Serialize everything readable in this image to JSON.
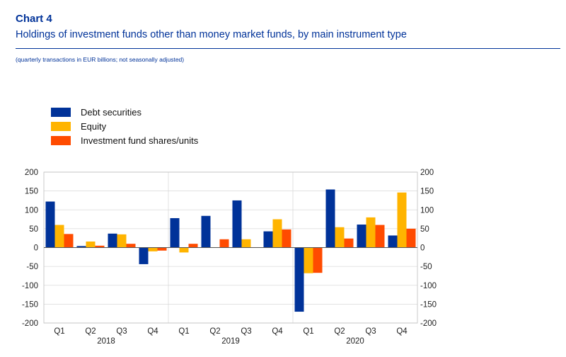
{
  "header": {
    "label": "Chart 4",
    "title": "Holdings of investment funds other than money market funds, by main instrument type",
    "subtitle": "(quarterly transactions in EUR billions; not seasonally adjusted)"
  },
  "colors": {
    "title": "#003299",
    "debt": "#003299",
    "equity": "#FFB400",
    "fund": "#FF4B00"
  },
  "chart_data": {
    "type": "bar",
    "categories": [
      "Q1",
      "Q2",
      "Q3",
      "Q4",
      "Q1",
      "Q2",
      "Q3",
      "Q4",
      "Q1",
      "Q2",
      "Q3",
      "Q4"
    ],
    "year_groups": [
      {
        "label": "2018",
        "quarters": 4
      },
      {
        "label": "2019",
        "quarters": 4
      },
      {
        "label": "2020",
        "quarters": 4
      }
    ],
    "series": [
      {
        "name": "Debt securities",
        "color": "#003299",
        "values": [
          122,
          4,
          37,
          -44,
          78,
          84,
          125,
          43,
          -170,
          154,
          61,
          32
        ]
      },
      {
        "name": "Equity",
        "color": "#FFB400",
        "values": [
          60,
          16,
          35,
          -10,
          -13,
          1,
          22,
          75,
          -68,
          54,
          80,
          146
        ]
      },
      {
        "name": "Investment fund shares/units",
        "color": "#FF4B00",
        "values": [
          36,
          5,
          10,
          -8,
          10,
          22,
          1,
          48,
          -67,
          24,
          60,
          50
        ]
      }
    ],
    "ylim": [
      -200,
      200
    ],
    "yticks": [
      200,
      150,
      100,
      50,
      0,
      -50,
      -100,
      -150,
      -200
    ],
    "grid": true,
    "legend_position": "top-left"
  }
}
